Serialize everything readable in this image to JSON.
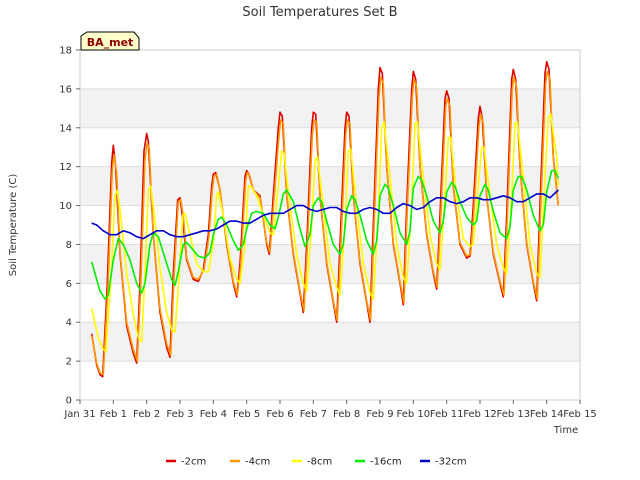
{
  "chart_data": {
    "type": "line",
    "title": "Soil Temperatures Set B",
    "xlabel": "Time",
    "ylabel": "Soil Temperature (C)",
    "xlim": [
      0,
      15
    ],
    "ylim": [
      0,
      18
    ],
    "x_ticks": [
      0,
      1,
      2,
      3,
      4,
      5,
      6,
      7,
      8,
      9,
      10,
      11,
      12,
      13,
      14,
      15
    ],
    "x_tick_labels": [
      "Jan 31",
      "Feb 1",
      "Feb 2",
      "Feb 3",
      "Feb 4",
      "Feb 5",
      "Feb 6",
      "Feb 7",
      "Feb 8",
      "Feb 9",
      "Feb 10",
      "Feb 11",
      "Feb 12",
      "Feb 13",
      "Feb 14",
      "Feb 15"
    ],
    "y_ticks": [
      0,
      2,
      4,
      6,
      8,
      10,
      12,
      14,
      16,
      18
    ],
    "y_tick_labels": [
      "0",
      "2",
      "4",
      "6",
      "8",
      "10",
      "12",
      "14",
      "16",
      "18"
    ],
    "annotation": "BA_met",
    "legend_position": "bottom-center",
    "series": [
      {
        "name": "-2cm",
        "color": "#dd0000",
        "x": [
          0.35,
          0.5,
          0.6,
          0.68,
          0.82,
          0.95,
          1.0,
          1.07,
          1.2,
          1.4,
          1.6,
          1.7,
          1.8,
          1.92,
          2.0,
          2.05,
          2.2,
          2.4,
          2.6,
          2.7,
          2.8,
          2.93,
          3.0,
          3.07,
          3.2,
          3.4,
          3.55,
          3.7,
          3.85,
          3.95,
          4.0,
          4.07,
          4.2,
          4.4,
          4.6,
          4.7,
          4.8,
          4.95,
          5.0,
          5.07,
          5.2,
          5.4,
          5.6,
          5.68,
          5.8,
          5.95,
          6.0,
          6.07,
          6.2,
          6.4,
          6.6,
          6.7,
          6.8,
          6.95,
          7.0,
          7.07,
          7.2,
          7.4,
          7.6,
          7.7,
          7.8,
          7.95,
          8.0,
          8.07,
          8.2,
          8.4,
          8.6,
          8.7,
          8.8,
          8.95,
          9.0,
          9.07,
          9.2,
          9.4,
          9.6,
          9.7,
          9.8,
          9.95,
          10.0,
          10.07,
          10.2,
          10.4,
          10.6,
          10.7,
          10.8,
          10.95,
          11.0,
          11.07,
          11.2,
          11.4,
          11.6,
          11.7,
          11.8,
          11.95,
          12.0,
          12.07,
          12.2,
          12.4,
          12.6,
          12.7,
          12.8,
          12.95,
          13.0,
          13.07,
          13.2,
          13.4,
          13.6,
          13.7,
          13.8,
          13.95,
          14.0,
          14.07,
          14.2,
          14.35
        ],
        "y": [
          3.4,
          1.8,
          1.3,
          1.2,
          6.0,
          12.2,
          13.1,
          12.0,
          7.5,
          3.8,
          2.4,
          1.9,
          6.0,
          12.8,
          13.7,
          13.3,
          8.5,
          4.5,
          2.7,
          2.2,
          6.5,
          10.3,
          10.4,
          9.5,
          7.2,
          6.2,
          6.1,
          6.7,
          8.5,
          11.0,
          11.6,
          11.7,
          10.8,
          8.0,
          6.0,
          5.3,
          7.0,
          11.5,
          11.8,
          11.6,
          10.8,
          10.5,
          8.0,
          7.5,
          10.5,
          14.0,
          14.8,
          14.6,
          10.5,
          7.5,
          5.5,
          4.5,
          8.0,
          14.0,
          14.8,
          14.7,
          10.5,
          7.0,
          5.0,
          4.0,
          8.0,
          14.0,
          14.8,
          14.6,
          10.5,
          7.0,
          5.0,
          4.0,
          9.0,
          16.0,
          17.1,
          16.8,
          12.0,
          8.0,
          6.0,
          4.9,
          10.0,
          16.0,
          16.9,
          16.5,
          12.0,
          8.5,
          6.5,
          5.7,
          9.5,
          15.5,
          15.9,
          15.5,
          11.0,
          8.0,
          7.3,
          7.4,
          10.0,
          14.5,
          15.1,
          14.5,
          10.5,
          7.5,
          6.0,
          5.3,
          9.5,
          16.5,
          17.0,
          16.5,
          12.0,
          8.0,
          6.0,
          5.1,
          10.0,
          16.8,
          17.4,
          17.0,
          12.5,
          10.0
        ]
      },
      {
        "name": "-4cm",
        "color": "#ff9900",
        "x": [
          0.35,
          0.5,
          0.6,
          0.7,
          0.84,
          0.97,
          1.02,
          1.1,
          1.2,
          1.4,
          1.6,
          1.72,
          1.82,
          1.95,
          2.02,
          2.08,
          2.2,
          2.4,
          2.6,
          2.72,
          2.82,
          2.95,
          3.02,
          3.1,
          3.2,
          3.4,
          3.55,
          3.72,
          3.87,
          3.97,
          4.02,
          4.1,
          4.2,
          4.4,
          4.6,
          4.72,
          4.82,
          4.97,
          5.02,
          5.1,
          5.2,
          5.4,
          5.6,
          5.7,
          5.82,
          5.97,
          6.02,
          6.1,
          6.2,
          6.4,
          6.6,
          6.72,
          6.82,
          6.97,
          7.02,
          7.1,
          7.2,
          7.4,
          7.6,
          7.72,
          7.82,
          7.97,
          8.02,
          8.1,
          8.2,
          8.4,
          8.6,
          8.72,
          8.82,
          8.97,
          9.02,
          9.1,
          9.2,
          9.4,
          9.6,
          9.72,
          9.82,
          9.97,
          10.02,
          10.1,
          10.2,
          10.4,
          10.6,
          10.72,
          10.82,
          10.97,
          11.02,
          11.1,
          11.2,
          11.4,
          11.6,
          11.72,
          11.82,
          11.97,
          12.02,
          12.1,
          12.2,
          12.4,
          12.6,
          12.72,
          12.82,
          12.97,
          13.02,
          13.1,
          13.2,
          13.4,
          13.6,
          13.72,
          13.82,
          13.97,
          14.02,
          14.1,
          14.2,
          14.35
        ],
        "y": [
          3.3,
          1.9,
          1.4,
          1.3,
          5.8,
          11.8,
          12.6,
          11.7,
          7.6,
          4.0,
          2.6,
          2.0,
          5.8,
          12.4,
          13.2,
          12.9,
          8.5,
          4.7,
          2.9,
          2.3,
          6.3,
          10.2,
          10.3,
          9.5,
          7.3,
          6.3,
          6.2,
          6.7,
          8.4,
          10.8,
          11.5,
          11.6,
          10.8,
          8.1,
          6.1,
          5.4,
          6.9,
          11.3,
          11.7,
          11.5,
          10.8,
          10.4,
          8.1,
          7.6,
          10.3,
          13.6,
          14.4,
          14.2,
          10.5,
          7.6,
          5.6,
          4.6,
          7.8,
          13.6,
          14.4,
          14.3,
          10.5,
          7.1,
          5.1,
          4.1,
          7.8,
          13.6,
          14.4,
          14.2,
          10.5,
          7.1,
          5.1,
          4.1,
          8.8,
          15.6,
          16.6,
          16.3,
          12.0,
          8.1,
          6.1,
          5.0,
          9.8,
          15.6,
          16.5,
          16.1,
          12.0,
          8.6,
          6.6,
          5.8,
          9.3,
          15.1,
          15.5,
          15.1,
          11.0,
          8.1,
          7.4,
          7.5,
          9.8,
          14.1,
          14.7,
          14.2,
          10.5,
          7.6,
          6.1,
          5.4,
          9.3,
          16.0,
          16.6,
          16.1,
          12.0,
          8.1,
          6.1,
          5.2,
          9.8,
          16.3,
          16.9,
          16.5,
          12.4,
          10.0
        ]
      },
      {
        "name": "-8cm",
        "color": "#ffff00",
        "x": [
          0.35,
          0.55,
          0.7,
          0.78,
          0.92,
          1.05,
          1.12,
          1.2,
          1.4,
          1.6,
          1.75,
          1.85,
          1.95,
          2.05,
          2.12,
          2.2,
          2.4,
          2.6,
          2.75,
          2.85,
          2.98,
          3.08,
          3.15,
          3.3,
          3.5,
          3.7,
          3.85,
          4.0,
          4.1,
          4.15,
          4.3,
          4.5,
          4.7,
          4.8,
          4.95,
          5.05,
          5.12,
          5.3,
          5.5,
          5.7,
          5.8,
          5.95,
          6.05,
          6.12,
          6.3,
          6.5,
          6.7,
          6.8,
          6.95,
          7.05,
          7.12,
          7.3,
          7.5,
          7.7,
          7.8,
          7.95,
          8.05,
          8.12,
          8.3,
          8.5,
          8.7,
          8.8,
          8.95,
          9.05,
          9.12,
          9.3,
          9.5,
          9.7,
          9.8,
          9.95,
          10.05,
          10.12,
          10.3,
          10.5,
          10.7,
          10.8,
          10.95,
          11.05,
          11.12,
          11.3,
          11.5,
          11.7,
          11.8,
          11.95,
          12.05,
          12.12,
          12.3,
          12.5,
          12.7,
          12.8,
          12.95,
          13.05,
          13.12,
          13.3,
          13.5,
          13.7,
          13.8,
          13.95,
          14.05,
          14.12,
          14.3,
          14.35
        ],
        "y": [
          4.7,
          3.2,
          2.6,
          2.5,
          6.0,
          10.5,
          10.8,
          9.8,
          6.5,
          4.4,
          3.2,
          3.0,
          6.5,
          10.8,
          11.0,
          10.0,
          6.8,
          4.5,
          3.6,
          3.5,
          6.5,
          9.5,
          9.6,
          8.5,
          7.0,
          6.6,
          6.6,
          8.0,
          10.6,
          10.7,
          9.5,
          7.3,
          6.2,
          6.0,
          8.0,
          11.0,
          11.0,
          10.5,
          9.5,
          8.6,
          8.5,
          11.0,
          12.8,
          12.7,
          10.0,
          7.5,
          6.0,
          5.6,
          9.0,
          12.3,
          12.5,
          10.0,
          7.0,
          5.8,
          5.4,
          9.0,
          12.8,
          12.9,
          10.0,
          7.0,
          5.5,
          5.2,
          9.5,
          14.0,
          14.3,
          11.5,
          8.0,
          6.3,
          6.0,
          10.0,
          14.2,
          14.3,
          11.5,
          8.5,
          7.0,
          6.7,
          10.5,
          13.5,
          13.5,
          10.5,
          8.3,
          7.9,
          8.0,
          11.0,
          13.0,
          13.0,
          10.5,
          8.0,
          6.8,
          6.5,
          10.5,
          14.2,
          14.3,
          11.5,
          8.0,
          6.5,
          6.3,
          11.5,
          14.5,
          14.7,
          12.5,
          11.0
        ]
      },
      {
        "name": "-16cm",
        "color": "#00ee00",
        "x": [
          0.35,
          0.6,
          0.75,
          0.85,
          1.0,
          1.15,
          1.3,
          1.5,
          1.7,
          1.85,
          1.95,
          2.1,
          2.2,
          2.35,
          2.55,
          2.75,
          2.85,
          2.95,
          3.1,
          3.2,
          3.35,
          3.55,
          3.75,
          3.9,
          4.0,
          4.15,
          4.25,
          4.4,
          4.6,
          4.75,
          4.9,
          5.0,
          5.15,
          5.3,
          5.5,
          5.7,
          5.85,
          5.95,
          6.1,
          6.2,
          6.4,
          6.6,
          6.75,
          6.9,
          7.0,
          7.15,
          7.25,
          7.4,
          7.6,
          7.8,
          7.9,
          8.0,
          8.15,
          8.25,
          8.4,
          8.6,
          8.8,
          8.9,
          9.0,
          9.15,
          9.25,
          9.4,
          9.6,
          9.8,
          9.9,
          10.0,
          10.15,
          10.25,
          10.4,
          10.6,
          10.8,
          10.9,
          11.0,
          11.15,
          11.25,
          11.4,
          11.6,
          11.8,
          11.9,
          12.0,
          12.15,
          12.25,
          12.4,
          12.6,
          12.8,
          12.9,
          13.0,
          13.15,
          13.25,
          13.4,
          13.6,
          13.8,
          13.9,
          14.0,
          14.15,
          14.25,
          14.35
        ],
        "y": [
          7.1,
          5.6,
          5.2,
          5.4,
          7.2,
          8.3,
          8.0,
          7.2,
          6.0,
          5.5,
          6.0,
          8.0,
          8.6,
          8.4,
          7.3,
          6.2,
          5.9,
          6.6,
          8.0,
          8.1,
          7.8,
          7.4,
          7.3,
          7.6,
          8.5,
          9.3,
          9.4,
          9.0,
          8.2,
          7.7,
          8.0,
          8.8,
          9.6,
          9.7,
          9.6,
          9.0,
          8.8,
          9.4,
          10.6,
          10.8,
          10.2,
          8.8,
          7.9,
          8.5,
          10.0,
          10.4,
          10.2,
          9.2,
          8.0,
          7.5,
          8.0,
          9.8,
          10.5,
          10.3,
          9.5,
          8.2,
          7.5,
          8.2,
          10.5,
          11.1,
          10.9,
          10.0,
          8.6,
          8.0,
          8.7,
          10.9,
          11.5,
          11.3,
          10.5,
          9.2,
          8.6,
          9.2,
          10.7,
          11.2,
          11.0,
          10.2,
          9.4,
          9.0,
          9.2,
          10.5,
          11.1,
          10.8,
          9.7,
          8.6,
          8.3,
          8.9,
          10.8,
          11.5,
          11.5,
          10.8,
          9.5,
          8.7,
          9.0,
          10.7,
          11.8,
          11.8,
          11.4
        ]
      },
      {
        "name": "-32cm",
        "color": "#0000cc",
        "x": [
          0.35,
          0.5,
          0.7,
          0.9,
          1.1,
          1.3,
          1.5,
          1.7,
          1.9,
          2.1,
          2.3,
          2.5,
          2.7,
          2.9,
          3.1,
          3.3,
          3.5,
          3.7,
          3.9,
          4.1,
          4.3,
          4.5,
          4.7,
          4.9,
          5.1,
          5.3,
          5.5,
          5.7,
          5.9,
          6.1,
          6.3,
          6.5,
          6.7,
          6.9,
          7.1,
          7.3,
          7.5,
          7.7,
          7.9,
          8.1,
          8.3,
          8.5,
          8.7,
          8.9,
          9.1,
          9.3,
          9.5,
          9.7,
          9.9,
          10.1,
          10.3,
          10.5,
          10.7,
          10.9,
          11.1,
          11.3,
          11.5,
          11.7,
          11.9,
          12.1,
          12.3,
          12.5,
          12.7,
          12.9,
          13.1,
          13.3,
          13.5,
          13.7,
          13.9,
          14.1,
          14.35
        ],
        "y": [
          9.1,
          9.0,
          8.7,
          8.5,
          8.5,
          8.7,
          8.6,
          8.4,
          8.3,
          8.5,
          8.7,
          8.7,
          8.5,
          8.4,
          8.4,
          8.5,
          8.6,
          8.7,
          8.7,
          8.8,
          9.0,
          9.2,
          9.2,
          9.1,
          9.1,
          9.3,
          9.5,
          9.6,
          9.6,
          9.6,
          9.8,
          10.0,
          10.0,
          9.8,
          9.7,
          9.8,
          9.9,
          9.9,
          9.7,
          9.6,
          9.6,
          9.8,
          9.9,
          9.8,
          9.6,
          9.6,
          9.9,
          10.1,
          10.0,
          9.8,
          9.9,
          10.2,
          10.4,
          10.4,
          10.2,
          10.1,
          10.2,
          10.4,
          10.4,
          10.3,
          10.3,
          10.4,
          10.5,
          10.4,
          10.2,
          10.2,
          10.4,
          10.6,
          10.6,
          10.4,
          10.8
        ]
      }
    ]
  }
}
